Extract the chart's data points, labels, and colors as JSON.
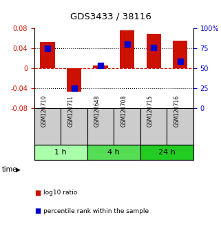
{
  "title": "GDS3433 / 38116",
  "samples": [
    "GSM120710",
    "GSM120711",
    "GSM120648",
    "GSM120708",
    "GSM120715",
    "GSM120716"
  ],
  "log10_ratio": [
    0.052,
    -0.047,
    0.005,
    0.075,
    0.068,
    0.055
  ],
  "percentile_rank": [
    75,
    25,
    53,
    80,
    76,
    58
  ],
  "groups": [
    {
      "label": "1 h",
      "indices": [
        0,
        1
      ],
      "color": "#aaffaa"
    },
    {
      "label": "4 h",
      "indices": [
        2,
        3
      ],
      "color": "#55dd55"
    },
    {
      "label": "24 h",
      "indices": [
        4,
        5
      ],
      "color": "#22cc22"
    }
  ],
  "bar_color": "#cc1100",
  "dot_color": "#0000cc",
  "ylim_left": [
    -0.08,
    0.08
  ],
  "ylim_right": [
    0,
    100
  ],
  "yticks_left": [
    -0.08,
    -0.04,
    0,
    0.04,
    0.08
  ],
  "yticks_right": [
    0,
    25,
    50,
    75,
    100
  ],
  "ytick_labels_left": [
    "-0.08",
    "-0.04",
    "0",
    "0.04",
    "0.08"
  ],
  "ytick_labels_right": [
    "0",
    "25",
    "50",
    "75",
    "100%"
  ],
  "hlines": [
    0.04,
    0.0,
    -0.04
  ],
  "hline_styles": [
    "dotted",
    "dashed_red",
    "dotted"
  ],
  "bar_width": 0.55,
  "background_color": "#ffffff",
  "plot_bg": "#ffffff",
  "legend_bar_label": "log10 ratio",
  "legend_dot_label": "percentile rank within the sample",
  "sample_bg": "#cccccc"
}
